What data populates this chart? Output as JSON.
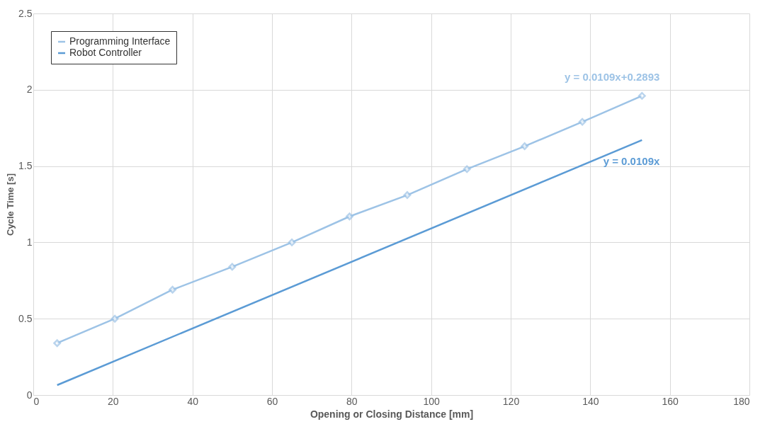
{
  "chart_data": {
    "type": "line",
    "xlabel": "Opening or Closing Distance [mm]",
    "ylabel": "Cycle Time [s]",
    "series": [
      {
        "name": "Programming Interface",
        "color": "#9dc3e6",
        "marker": "diamond",
        "x": [
          6,
          20.5,
          35,
          50,
          65,
          79.5,
          94,
          109,
          123.5,
          138,
          153
        ],
        "values": [
          0.34,
          0.5,
          0.69,
          0.84,
          1.0,
          1.17,
          1.31,
          1.48,
          1.63,
          1.79,
          1.96
        ]
      },
      {
        "name": "Robot Controller",
        "color": "#5b9bd5",
        "marker": "none",
        "x": [
          6,
          153
        ],
        "values": [
          0.065,
          1.67
        ]
      }
    ],
    "xlim": [
      0,
      180
    ],
    "xticks": [
      0,
      20,
      40,
      60,
      80,
      100,
      120,
      140,
      160,
      180
    ],
    "ylim": [
      0,
      2.5
    ],
    "yticks": [
      0,
      0.5,
      1,
      1.5,
      2,
      2.5
    ],
    "grid": true,
    "legend": "top left",
    "line_style": "solid",
    "annotations": [
      "y = 0.0109x+0.2893",
      "y = 0.0109x"
    ]
  }
}
